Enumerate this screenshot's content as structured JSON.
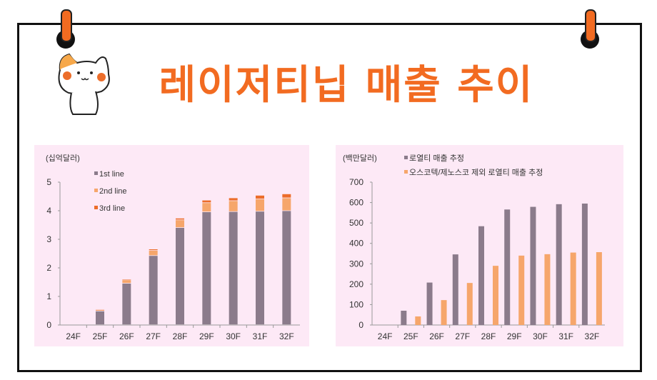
{
  "title": "레이저티닙 매출 추이",
  "colors": {
    "accent": "#f26b21",
    "first": "#8b7b8b",
    "second": "#f6a66b",
    "third": "#ec6d2a",
    "panel": "#fde9f6"
  },
  "chart_data": [
    {
      "type": "bar",
      "stacked": true,
      "unit_label": "(십억달러)",
      "categories": [
        "24F",
        "25F",
        "26F",
        "27F",
        "28F",
        "29F",
        "30F",
        "31F",
        "32F"
      ],
      "series": [
        {
          "name": "1st line",
          "values": [
            0,
            0.48,
            1.45,
            2.42,
            3.4,
            3.95,
            3.96,
            3.97,
            3.99
          ]
        },
        {
          "name": "2nd line",
          "values": [
            0,
            0.04,
            0.12,
            0.18,
            0.27,
            0.32,
            0.38,
            0.43,
            0.45
          ]
        },
        {
          "name": "3rd line",
          "values": [
            0,
            0.01,
            0.03,
            0.05,
            0.06,
            0.09,
            0.1,
            0.13,
            0.14
          ]
        }
      ],
      "ylim": [
        0,
        5
      ],
      "yticks": [
        "0",
        "1",
        "2",
        "3",
        "4",
        "5"
      ],
      "legend": "top-left"
    },
    {
      "type": "bar",
      "stacked": false,
      "unit_label": "(백만달러)",
      "categories": [
        "24F",
        "25F",
        "26F",
        "27F",
        "28F",
        "29F",
        "30F",
        "31F",
        "32F"
      ],
      "series": [
        {
          "name": "로열티 매출 추정",
          "values": [
            0,
            70,
            208,
            346,
            484,
            566,
            579,
            592,
            595
          ]
        },
        {
          "name": "오스코텍/제노스코 제외 로열티 매출 추정",
          "values": [
            0,
            42,
            122,
            206,
            290,
            340,
            347,
            355,
            357
          ]
        }
      ],
      "ylim": [
        0,
        700
      ],
      "yticks": [
        "0",
        "100",
        "200",
        "300",
        "400",
        "500",
        "600",
        "700"
      ],
      "legend": "top"
    }
  ]
}
